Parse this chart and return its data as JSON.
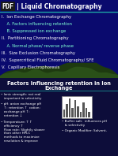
{
  "title_pdf": "PDF",
  "title_main": "| Liquid Chromatography",
  "bg_top_color": "#0a0a6e",
  "bg_bottom_color": "#0d0d3a",
  "slide1_lines": [
    [
      "I.  Ion Exchange Chromatography",
      "#ffffff",
      false
    ],
    [
      "    A. Factors influencing retention",
      "#7fffd4",
      false
    ],
    [
      "    B. Suppressed ion exchange",
      "#7fffd4",
      false
    ],
    [
      "II.  Partitioning Chromatography",
      "#ffffff",
      false
    ],
    [
      "    A. Normal phase/ reverse phase",
      "#7fffd4",
      false
    ],
    [
      "III.  Size Exclusion Chromatography",
      "#ffffff",
      false
    ],
    [
      "IV.  Supercritical Fluid Chromatography/ SFE",
      "#ffffff",
      false
    ],
    [
      "V.  Capillary Electrophoresis",
      "#ffffff",
      false
    ]
  ],
  "slide2_title_line1": "Factors Influencing retention in Ion",
  "slide2_title_line2": "Exchange",
  "slide2_bullets_left": [
    "• Ionic strength: not real\n   important in selectivity",
    "• pH: anion exchange pH\n   ↑: retention ↑  cation:\n   exchange pH ↑:\n   retention ↓",
    "• Temperature: T ↑\n   efficiency ↑\n   Flow rate: Slightly slower\n   than other HPLC\n   methods to maximize\n   resolution & improve"
  ],
  "slide2_bullets_right": [
    "• Buffer salt:  influences pH\n   & selectivity",
    "• Organic Modifier: Solvent,"
  ],
  "text_color_white": "#ffffff",
  "text_color_aqua": "#7fffd4",
  "pdf_bg": "#1a1a1a",
  "mountain_dark": "#1e3a10",
  "mountain_mid": "#2a5018",
  "mountain_light": "#3a6e20",
  "teal_line": "#20b2aa",
  "bar_chart_bars": [
    0.4,
    0.7,
    1.0,
    0.5,
    0.9,
    0.6,
    0.3,
    0.8,
    0.5,
    0.3
  ]
}
